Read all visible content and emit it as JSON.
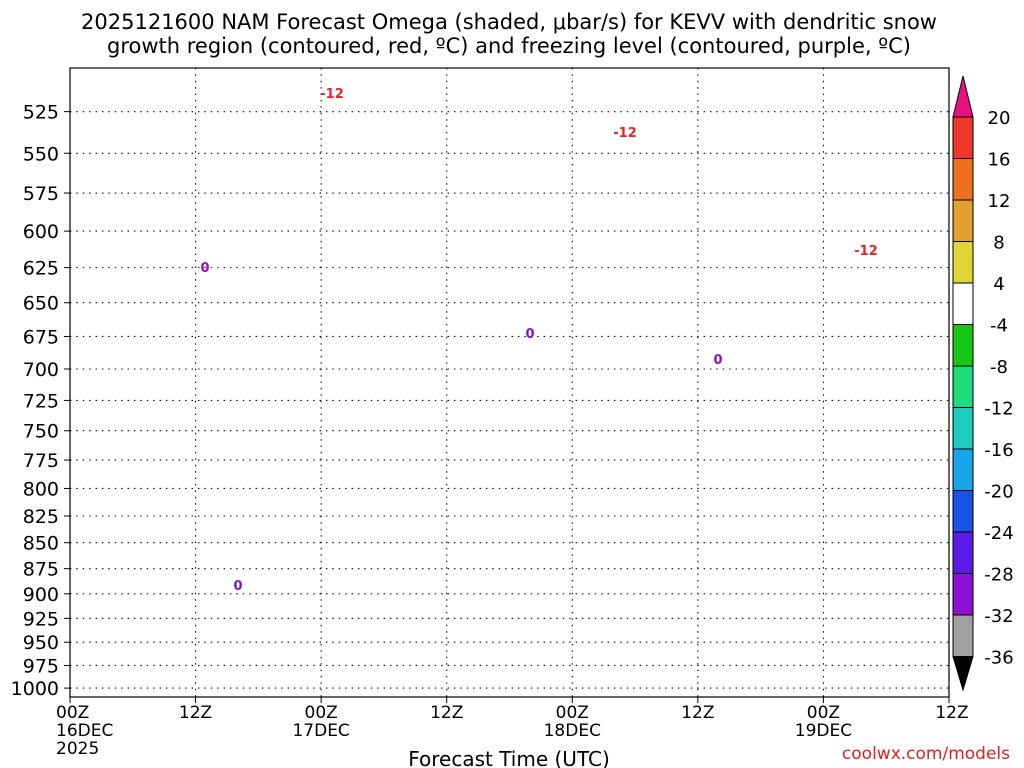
{
  "chart_data": {
    "type": "heatmap",
    "title_lines": [
      "2025121600 NAM Forecast Omega (shaded, μbar/s) for KEVV with dendritic snow",
      "growth region (contoured, red, ºC) and freezing level (contoured, purple, ºC)"
    ],
    "xlabel": "Forecast Time (UTC)",
    "credit": "coolwx.com/models",
    "xticks": [
      {
        "lines": [
          "00Z",
          "16DEC",
          "2025"
        ]
      },
      {
        "lines": [
          "12Z"
        ]
      },
      {
        "lines": [
          "00Z",
          "17DEC"
        ]
      },
      {
        "lines": [
          "12Z"
        ]
      },
      {
        "lines": [
          "00Z",
          "18DEC"
        ]
      },
      {
        "lines": [
          "12Z"
        ]
      },
      {
        "lines": [
          "00Z",
          "19DEC"
        ]
      },
      {
        "lines": [
          "12Z"
        ]
      }
    ],
    "xlim_hours": [
      0,
      84
    ],
    "y_scale": "log",
    "ylim": [
      1010,
      500
    ],
    "yticks": [
      525,
      550,
      575,
      600,
      625,
      650,
      675,
      700,
      725,
      750,
      775,
      800,
      825,
      850,
      875,
      900,
      925,
      950,
      975,
      1000
    ],
    "grid": true,
    "colorbar": {
      "labels": [
        20,
        16,
        12,
        8,
        4,
        -4,
        -8,
        -12,
        -16,
        -20,
        -24,
        -28,
        -32,
        -36
      ],
      "colors": [
        "#e8117f",
        "#f0392c",
        "#ee7120",
        "#e3a02c",
        "#e0d439",
        "#ffffff",
        "#18c618",
        "#1edb7c",
        "#1fcdbe",
        "#19a6e8",
        "#1a52e6",
        "#5b1ae6",
        "#8e10d0",
        "#a0a0a0",
        "#000000"
      ]
    },
    "contour_labels": [
      "-12",
      "-12",
      "-12",
      "0",
      "0",
      "0",
      "0"
    ]
  }
}
